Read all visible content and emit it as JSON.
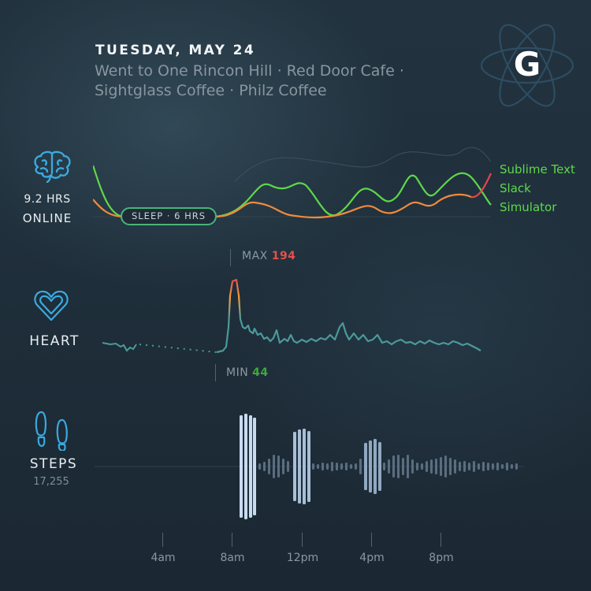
{
  "header": {
    "date": "TUESDAY, MAY 24",
    "places_line1": "Went to One Rincon Hill · Red Door Cafe ·",
    "places_line2": "Sightglass Coffee · Philz Coffee"
  },
  "logo": {
    "letter": "G",
    "icon": "atom-icon"
  },
  "online": {
    "hours": "9.2 HRS",
    "label": "ONLINE",
    "icon": "brain-icon",
    "sleep_label": "SLEEP · 6 HRS",
    "apps": [
      {
        "name": "Sublime Text",
        "color": "#5ed84a"
      },
      {
        "name": "Slack",
        "color": "#5ed84a"
      },
      {
        "name": "Simulator",
        "color": "#5ed84a"
      }
    ]
  },
  "heart": {
    "label": "HEART",
    "icon": "heart-icon",
    "max_label": "MAX",
    "max_value": "194",
    "min_label": "MIN",
    "min_value": "44",
    "colors": {
      "max": "#e5504a",
      "min": "#3fa83c",
      "line": "#4a9a9a"
    }
  },
  "steps": {
    "label": "STEPS",
    "count": "17,255",
    "icon": "footprints-icon"
  },
  "timeline": {
    "labels": [
      "4am",
      "8am",
      "12pm",
      "4pm",
      "8pm"
    ]
  },
  "colors": {
    "accent_blue": "#3aa9e0",
    "green": "#5ed84a",
    "orange": "#f08a3c",
    "red": "#e8434f"
  }
}
